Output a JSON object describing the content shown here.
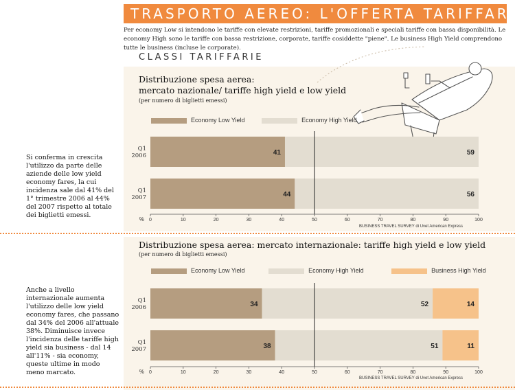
{
  "header": {
    "title": "TRASPORTO AEREO: L'OFFERTA TARIFFARIA",
    "note": "Per economy Low si intendono le tariffe con elevate restrizioni, tariffe promozionali e speciali tariffe con bassa disponibilità. Le economy High sono le tariffe con bassa restrizione, corporate, tariffe cosiddette \"piene\". Le business High Yield comprendono tutte le business (incluse le corporate)."
  },
  "section_title": "CLASSI TARIFFARIE",
  "colors": {
    "low": "#b59d80",
    "high": "#e3ddd1",
    "business": "#f6c28a",
    "accent": "#f08a3e",
    "panel": "#faf4ea"
  },
  "illustration": "man-reclining-in-armchair-icon",
  "side_text_1": "Si conferma in crescita l'utilizzo da parte delle aziende delle low yield economy fares, la cui incidenza sale dal 41% del 1° trimestre 2006 al 44% del 2007 rispetto al totale dei biglietti emessi.",
  "side_text_2": "Anche a livello internazionale aumenta l'utilizzo delle low yield economy fares, che passano dal 34% del 2006 all'attuale 38%. Diminuisce invece l'incidenza delle tariffe high yield sia business - dal 14 all'11% - sia economy, queste ultime in modo meno marcato.",
  "chart_data": [
    {
      "type": "bar",
      "orientation": "horizontal",
      "stacked": true,
      "title_line1": "Distribuzione spesa aerea:",
      "title_line2": "mercato nazionale/ tariffe high yield e low yield",
      "subtitle": "(per numero di biglietti emessi)",
      "categories": [
        [
          "Q1",
          "2006"
        ],
        [
          "Q1",
          "2007"
        ]
      ],
      "series": [
        {
          "name": "Economy Low Yield",
          "values": [
            41,
            44
          ],
          "color": "#b59d80"
        },
        {
          "name": "Economy High Yield",
          "values": [
            59,
            56
          ],
          "color": "#e3ddd1"
        }
      ],
      "xlim": [
        0,
        100
      ],
      "xticks": [
        "0",
        "10",
        "20",
        "30",
        "40",
        "50",
        "60",
        "70",
        "80",
        "90",
        "100"
      ],
      "axis_unit": "%",
      "reference_line": 50,
      "legend_position": "top",
      "source": "BUSINESS TRAVEL SURVEY di Uvet American Express"
    },
    {
      "type": "bar",
      "orientation": "horizontal",
      "stacked": true,
      "title_line1": "Distribuzione spesa aerea: mercato internazionale: tariffe high yield e low yield",
      "subtitle": "(per numero di biglietti emessi)",
      "categories": [
        [
          "Q1",
          "2006"
        ],
        [
          "Q1",
          "2007"
        ]
      ],
      "series": [
        {
          "name": "Economy Low Yield",
          "values": [
            34,
            38
          ],
          "color": "#b59d80"
        },
        {
          "name": "Economy High Yield",
          "values": [
            52,
            51
          ],
          "color": "#e3ddd1"
        },
        {
          "name": "Business High Yield",
          "values": [
            14,
            11
          ],
          "color": "#f6c28a"
        }
      ],
      "xlim": [
        0,
        100
      ],
      "xticks": [
        "0",
        "10",
        "20",
        "30",
        "40",
        "50",
        "60",
        "70",
        "80",
        "90",
        "100"
      ],
      "axis_unit": "%",
      "reference_line": 50,
      "legend_position": "top",
      "source": "BUSINESS TRAVEL SURVEY di Uvet American Express"
    }
  ]
}
